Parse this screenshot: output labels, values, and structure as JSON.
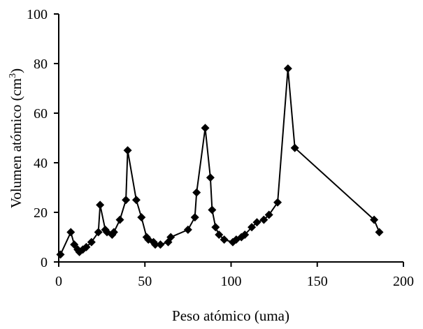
{
  "chart_data": {
    "type": "line",
    "title": "",
    "xlabel": "Peso atómico (uma)",
    "ylabel": "Volumen atómico (cm",
    "ylabel_superscript": "3",
    "ylabel_suffix": ")",
    "xlim": [
      0,
      200
    ],
    "ylim": [
      0,
      100
    ],
    "xticks": [
      0,
      50,
      100,
      150,
      200
    ],
    "yticks": [
      0,
      20,
      40,
      60,
      80,
      100
    ],
    "grid": false,
    "marker": "diamond",
    "line_color": "#000000",
    "series": [
      {
        "x": [
          1,
          7,
          9,
          11,
          12,
          14,
          16,
          19,
          23,
          24,
          27,
          28,
          31,
          32,
          35.5,
          39,
          40,
          45,
          48,
          51,
          52,
          55,
          56,
          59,
          63.5,
          65,
          75,
          79,
          80,
          85,
          88,
          89,
          91,
          93,
          96,
          101,
          103,
          106,
          108,
          112,
          115,
          119,
          122,
          127,
          133,
          137,
          183,
          186
        ],
        "y": [
          3,
          12,
          7,
          5,
          4,
          5,
          6,
          8,
          12,
          23,
          13,
          12,
          11,
          12,
          17,
          25,
          45,
          25,
          18,
          10,
          9,
          8,
          7,
          7,
          8,
          10,
          13,
          18,
          28,
          54,
          34,
          21,
          14,
          11,
          9,
          8,
          9,
          10,
          11,
          14,
          16,
          17,
          19,
          24,
          78,
          46,
          17,
          12
        ]
      }
    ]
  }
}
